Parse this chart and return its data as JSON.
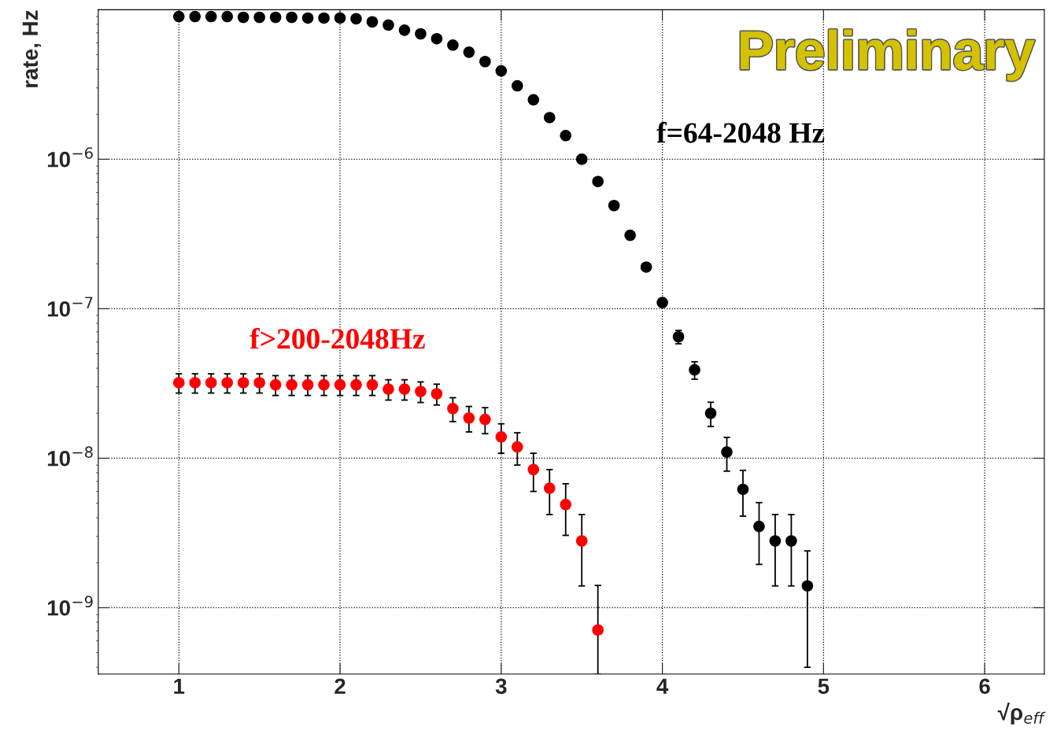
{
  "chart_data": {
    "type": "scatter",
    "xlabel": "√ρ$_{eff}$",
    "ylabel": "rate, Hz",
    "annotations": [
      "Preliminary"
    ],
    "xlim": [
      0.5,
      6.37
    ],
    "xticks": [
      1,
      2,
      3,
      4,
      5,
      6
    ],
    "ylim": [
      3.6e-10,
      1e-05
    ],
    "yticks": [
      {
        "value": 1e-09,
        "label": "10$^{−9}$"
      },
      {
        "value": 1e-08,
        "label": "10$^{−8}$"
      },
      {
        "value": 1e-07,
        "label": "10$^{−7}$"
      },
      {
        "value": 1e-06,
        "label": "10$^{−6}$"
      }
    ],
    "log": "y",
    "grid": true,
    "marker": "circle",
    "series": [
      {
        "name": "f=64-2048 Hz",
        "color": "#000000",
        "x": [
          1.0,
          1.1,
          1.2,
          1.3,
          1.4,
          1.5,
          1.6,
          1.7,
          1.8,
          1.9,
          2.0,
          2.1,
          2.2,
          2.3,
          2.4,
          2.5,
          2.6,
          2.7,
          2.8,
          2.9,
          3.0,
          3.1,
          3.2,
          3.3,
          3.4,
          3.5,
          3.6,
          3.7,
          3.8,
          3.9,
          4.0,
          4.1,
          4.2,
          4.3,
          4.4,
          4.5,
          4.6,
          4.7,
          4.8,
          4.9
        ],
        "values": [
          9e-06,
          9e-06,
          9e-06,
          9e-06,
          8.9e-06,
          8.9e-06,
          8.9e-06,
          8.9e-06,
          8.8e-06,
          8.8e-06,
          8.8e-06,
          8.7e-06,
          8.3e-06,
          7.9e-06,
          7.3e-06,
          6.9e-06,
          6.4e-06,
          5.8e-06,
          5.2e-06,
          4.5e-06,
          3.9e-06,
          3.1e-06,
          2.5e-06,
          1.9e-06,
          1.44e-06,
          1e-06,
          7.1e-07,
          4.9e-07,
          3.1e-07,
          1.9e-07,
          1.1e-07,
          6.5e-08,
          3.9e-08,
          2e-08,
          1.1e-08,
          6.2e-09,
          3.5e-09,
          2.8e-09,
          2.8e-09,
          1.4e-09
        ],
        "errors": [
          null,
          null,
          null,
          null,
          null,
          null,
          null,
          null,
          null,
          null,
          null,
          null,
          null,
          null,
          null,
          null,
          null,
          null,
          null,
          null,
          null,
          null,
          null,
          null,
          null,
          null,
          null,
          null,
          null,
          null,
          null,
          6.7e-09,
          5.2e-09,
          3.7e-09,
          2.8e-09,
          2.1e-09,
          1.55e-09,
          1.4e-09,
          1.4e-09,
          1e-09
        ]
      },
      {
        "name": "f>200-2048Hz",
        "color": "#ff0000",
        "x": [
          1.0,
          1.1,
          1.2,
          1.3,
          1.4,
          1.5,
          1.6,
          1.7,
          1.8,
          1.9,
          2.0,
          2.1,
          2.2,
          2.3,
          2.4,
          2.5,
          2.6,
          2.7,
          2.8,
          2.9,
          3.0,
          3.1,
          3.2,
          3.3,
          3.4,
          3.5,
          3.6
        ],
        "values": [
          3.2e-08,
          3.2e-08,
          3.2e-08,
          3.2e-08,
          3.2e-08,
          3.2e-08,
          3.1e-08,
          3.1e-08,
          3.1e-08,
          3.1e-08,
          3.1e-08,
          3.1e-08,
          3.1e-08,
          2.9e-08,
          2.9e-08,
          2.8e-08,
          2.7e-08,
          2.15e-08,
          1.86e-08,
          1.82e-08,
          1.39e-08,
          1.19e-08,
          8.4e-09,
          6.3e-09,
          4.9e-09,
          2.8e-09,
          7.1e-10
        ],
        "errors": [
          4.7e-09,
          4.7e-09,
          4.7e-09,
          4.7e-09,
          4.7e-09,
          4.7e-09,
          4.7e-09,
          4.7e-09,
          4.7e-09,
          4.7e-09,
          4.7e-09,
          4.7e-09,
          4.7e-09,
          4.5e-09,
          4.5e-09,
          4.4e-09,
          4.3e-09,
          3.9e-09,
          3.6e-09,
          3.6e-09,
          3.1e-09,
          2.9e-09,
          2.4e-09,
          2.1e-09,
          1.85e-09,
          1.4e-09,
          [
            3.6e-10,
            1.41e-09
          ]
        ]
      }
    ]
  }
}
